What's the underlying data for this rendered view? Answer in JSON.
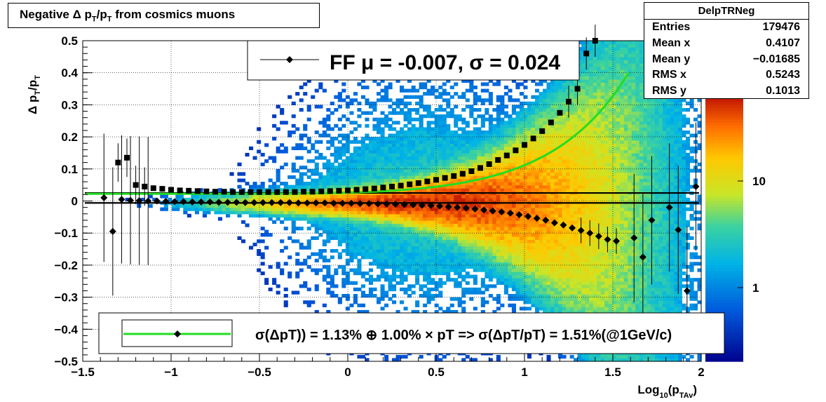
{
  "title": "Negative Δ pₜ/pₜ from cosmics muons",
  "title_parts": {
    "pre": "Negative Δ p",
    "sub1": "T",
    "mid": "/p",
    "sub2": "T",
    "post": " from cosmics muons"
  },
  "stats": {
    "name": "DelpTRNeg",
    "rows": [
      {
        "key": "Entries",
        "value": "179476"
      },
      {
        "key": "Mean x",
        "value": "0.4107"
      },
      {
        "key": "Mean y",
        "value": "−0.01685"
      },
      {
        "key": "RMS x",
        "value": "0.5243"
      },
      {
        "key": "RMS y",
        "value": "0.1013"
      }
    ]
  },
  "legend_top": {
    "text": "FF μ = -0.007, σ =   0.024"
  },
  "legend_bottom": {
    "text": "σ(ΔpT)) =  1.13% ⊕  1.00% × pT => σ(ΔpT/pT) =  1.51%(@1GeV/c)"
  },
  "colors": {
    "fit_curve": "#22dd22",
    "markers": "#000000",
    "palette_high": "#c81e00",
    "palette_low": "#000080"
  },
  "chart_data": {
    "type": "heatmap",
    "xlabel": "Log₁₀(pₜₐᵥ)",
    "xlabel_parts": {
      "pre": "Log",
      "sub": "10",
      "mid": "(p",
      "sub2": "TAv",
      "post": ")"
    },
    "ylabel_parts": {
      "pre": "Δ p",
      "sub": "T",
      "mid": "/p",
      "sub2": "T"
    },
    "xlim": [
      -1.5,
      2.0
    ],
    "ylim": [
      -0.5,
      0.5
    ],
    "xticks": [
      -1.5,
      -1,
      -0.5,
      0,
      0.5,
      1,
      1.5,
      2
    ],
    "xtick_labels": [
      "−1.5",
      "−1",
      "−0.5",
      "0",
      "0.5",
      "1",
      "1.5",
      "2"
    ],
    "yticks": [
      0.5,
      0.4,
      0.3,
      0.2,
      0.1,
      0,
      -0.1,
      -0.2,
      -0.3,
      -0.4,
      -0.5
    ],
    "ytick_labels": [
      "0.5",
      "0.4",
      "0.3",
      "0.2",
      "0.1",
      "0",
      "−0.1",
      "−0.2",
      "−0.3",
      "−0.4",
      "−0.5"
    ],
    "grid": true,
    "colorbar": {
      "scale": "log",
      "tick_labels": [
        "10",
        "1"
      ]
    },
    "hlines": [
      0.025,
      -0.006
    ],
    "sigma_points": {
      "x": [
        -1.3,
        -1.25,
        -1.2,
        -1.15,
        -1.1,
        -1.05,
        -1.0,
        -0.95,
        -0.9,
        -0.85,
        -0.8,
        -0.75,
        -0.7,
        -0.65,
        -0.6,
        -0.55,
        -0.5,
        -0.45,
        -0.4,
        -0.35,
        -0.3,
        -0.25,
        -0.2,
        -0.15,
        -0.1,
        -0.05,
        0.0,
        0.05,
        0.1,
        0.15,
        0.2,
        0.25,
        0.3,
        0.35,
        0.4,
        0.45,
        0.5,
        0.55,
        0.6,
        0.65,
        0.7,
        0.75,
        0.8,
        0.85,
        0.9,
        0.95,
        1.0,
        1.05,
        1.1,
        1.15,
        1.2,
        1.25,
        1.3,
        1.35,
        1.4
      ],
      "y": [
        0.12,
        0.135,
        0.05,
        0.045,
        0.04,
        0.038,
        0.035,
        0.033,
        0.032,
        0.031,
        0.03,
        0.029,
        0.029,
        0.028,
        0.028,
        0.028,
        0.028,
        0.028,
        0.028,
        0.028,
        0.028,
        0.029,
        0.029,
        0.03,
        0.031,
        0.032,
        0.033,
        0.035,
        0.037,
        0.039,
        0.042,
        0.045,
        0.048,
        0.052,
        0.056,
        0.061,
        0.066,
        0.072,
        0.078,
        0.085,
        0.093,
        0.103,
        0.115,
        0.128,
        0.142,
        0.158,
        0.175,
        0.195,
        0.218,
        0.245,
        0.275,
        0.31,
        0.35,
        0.46,
        0.5
      ]
    },
    "mean_points": {
      "x": [
        -1.38,
        -1.33,
        -1.28,
        -1.23,
        -1.18,
        -1.13,
        -1.08,
        -1.03,
        -0.98,
        -0.93,
        -0.88,
        -0.83,
        -0.78,
        -0.73,
        -0.68,
        -0.63,
        -0.58,
        -0.53,
        -0.48,
        -0.43,
        -0.38,
        -0.33,
        -0.28,
        -0.23,
        -0.18,
        -0.13,
        -0.08,
        -0.03,
        0.02,
        0.07,
        0.12,
        0.17,
        0.22,
        0.27,
        0.32,
        0.37,
        0.42,
        0.47,
        0.52,
        0.57,
        0.62,
        0.67,
        0.72,
        0.77,
        0.82,
        0.87,
        0.92,
        0.97,
        1.02,
        1.07,
        1.12,
        1.17,
        1.22,
        1.27,
        1.32,
        1.37,
        1.42,
        1.47,
        1.52,
        1.62,
        1.67,
        1.72,
        1.82,
        1.87,
        1.92,
        1.97
      ],
      "y": [
        0.01,
        -0.095,
        0.005,
        0.002,
        0.001,
        0.0,
        0.0,
        -0.001,
        -0.002,
        -0.002,
        -0.003,
        -0.003,
        -0.003,
        -0.004,
        -0.004,
        -0.004,
        -0.005,
        -0.005,
        -0.005,
        -0.005,
        -0.005,
        -0.005,
        -0.006,
        -0.006,
        -0.006,
        -0.006,
        -0.007,
        -0.007,
        -0.007,
        -0.008,
        -0.008,
        -0.009,
        -0.009,
        -0.01,
        -0.011,
        -0.012,
        -0.013,
        -0.014,
        -0.016,
        -0.018,
        -0.02,
        -0.022,
        -0.025,
        -0.028,
        -0.031,
        -0.034,
        -0.038,
        -0.043,
        -0.048,
        -0.054,
        -0.06,
        -0.068,
        -0.075,
        -0.084,
        -0.092,
        -0.1,
        -0.11,
        -0.12,
        -0.125,
        -0.115,
        -0.175,
        -0.06,
        -0.02,
        -0.09,
        -0.28,
        0.045
      ]
    },
    "fit": {
      "a": 0.0113,
      "b": 0.01
    }
  }
}
